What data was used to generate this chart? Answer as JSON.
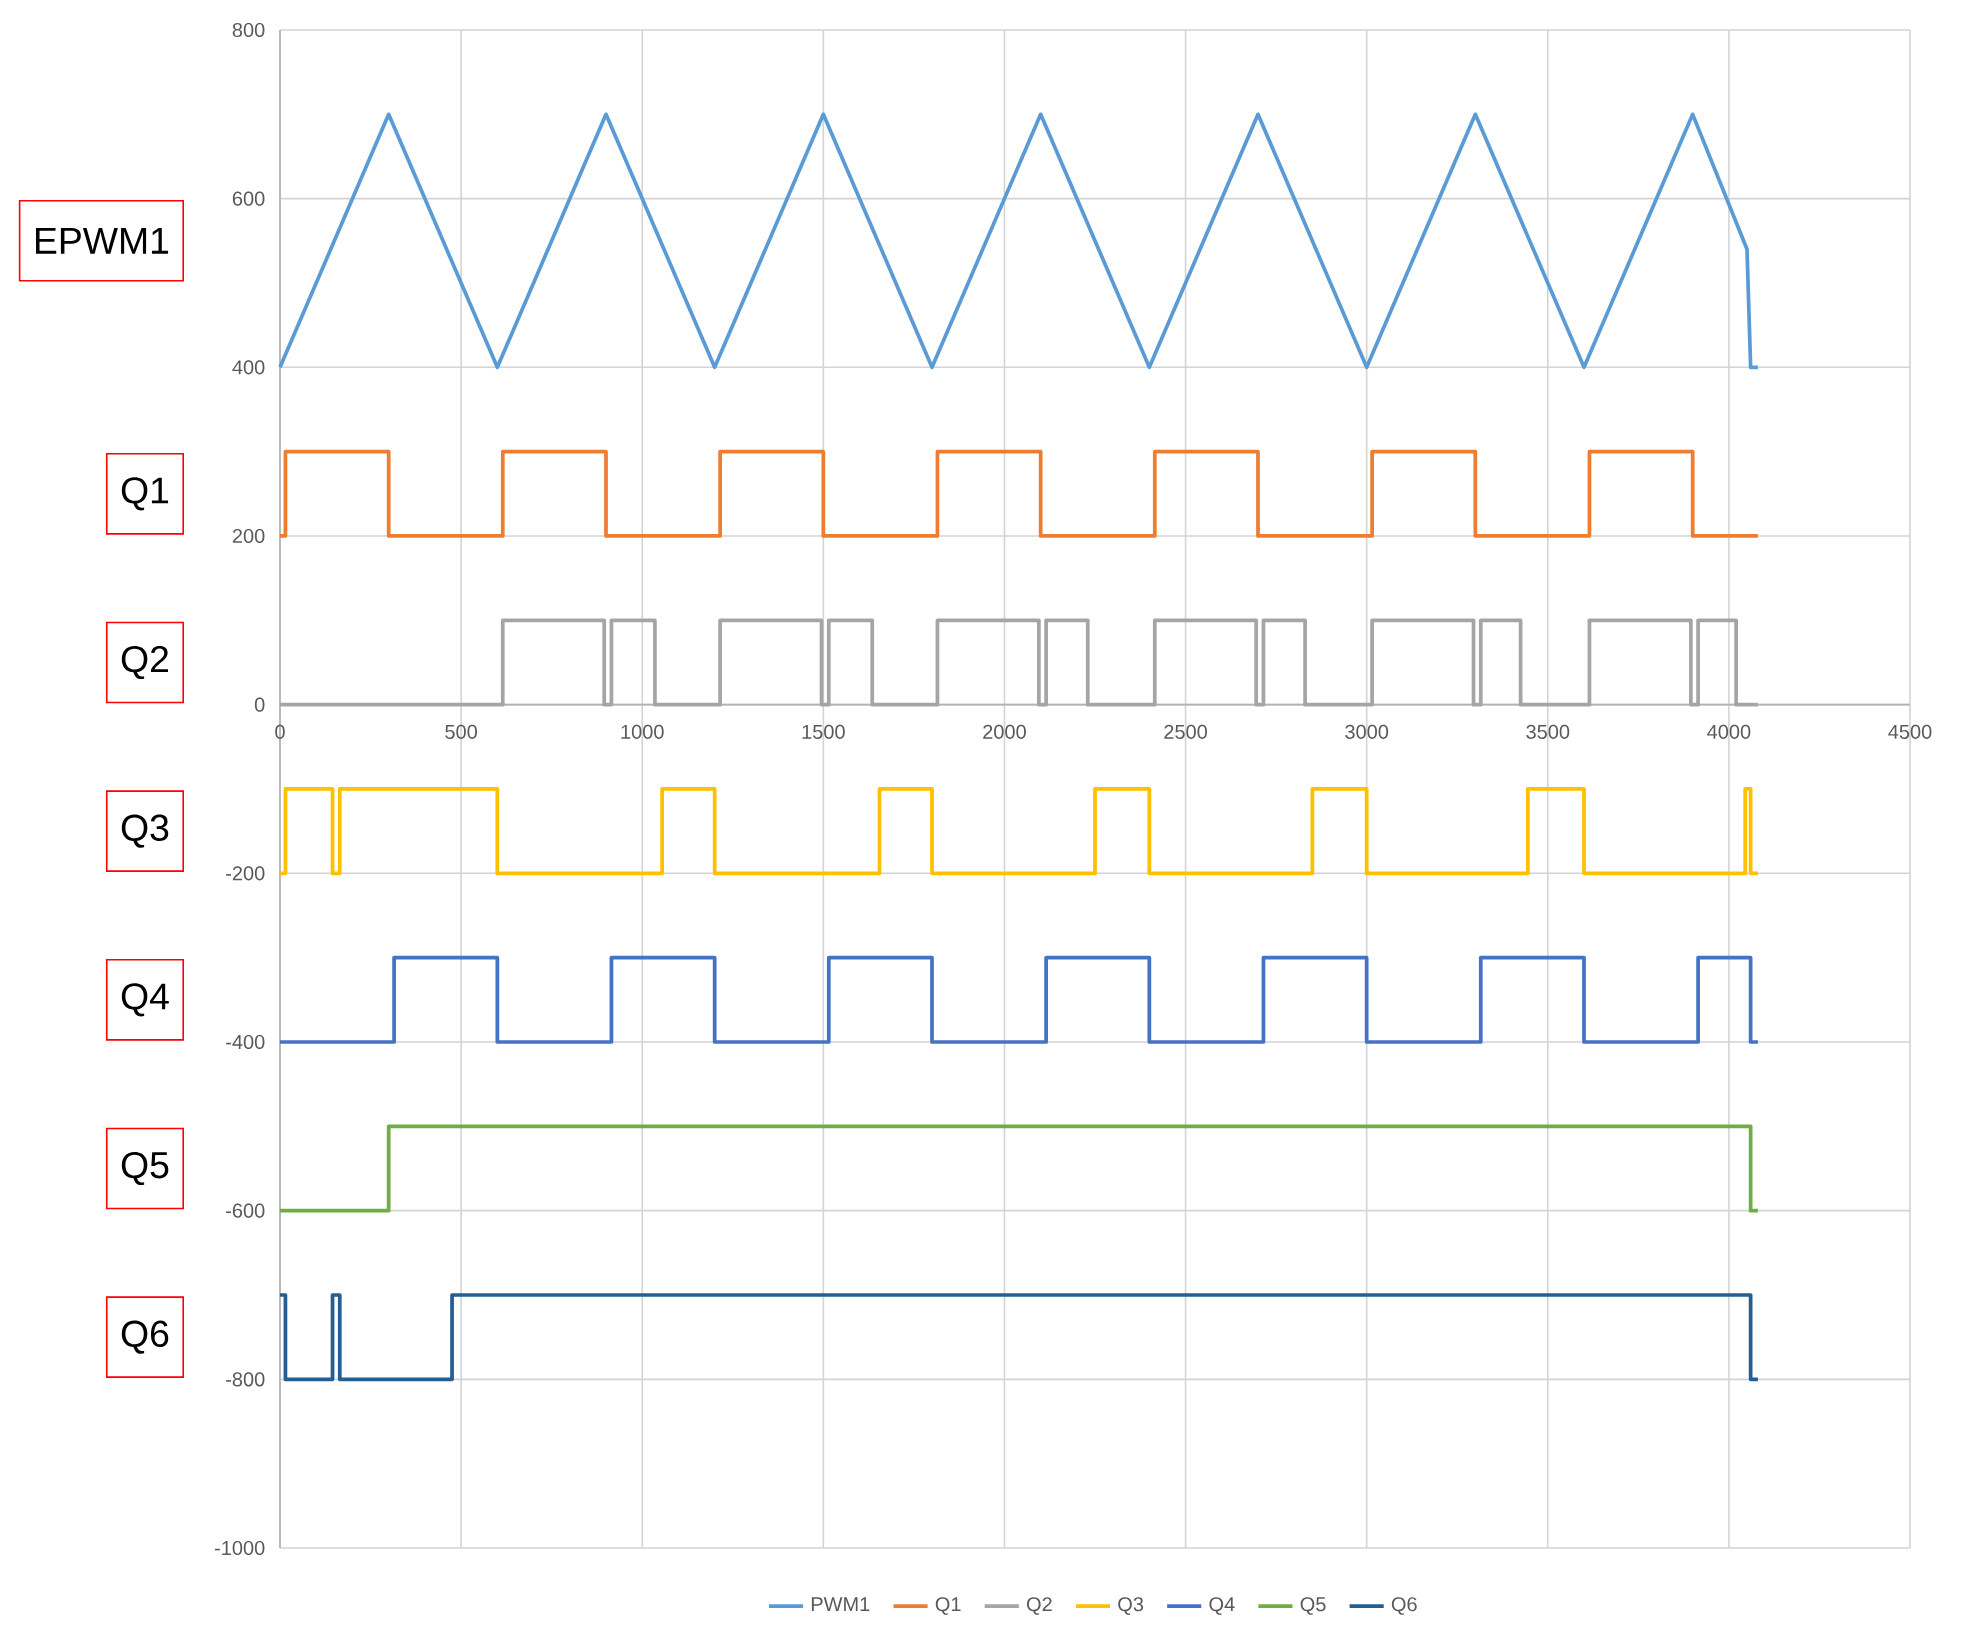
{
  "chart_data": {
    "type": "line",
    "xlim": [
      0,
      4500
    ],
    "xticks": [
      0,
      500,
      1000,
      1500,
      2000,
      2500,
      3000,
      3500,
      4000,
      4500
    ],
    "ylim": [
      -1000,
      800
    ],
    "yticks": [
      -1000,
      -800,
      -600,
      -400,
      -200,
      0,
      200,
      400,
      600,
      800
    ],
    "grid": true,
    "legend": "bottom",
    "annotations": [
      "EPWM1",
      "Q1",
      "Q2",
      "Q3",
      "Q4",
      "Q5",
      "Q6"
    ],
    "series": [
      {
        "name": "PWM1",
        "color": "#5b9bd5",
        "x": [
          0,
          300,
          600,
          900,
          1200,
          1500,
          1800,
          2100,
          2400,
          2700,
          3000,
          3300,
          3600,
          3900,
          4050,
          4060,
          4080
        ],
        "values": [
          400,
          700,
          400,
          700,
          400,
          700,
          400,
          700,
          400,
          700,
          400,
          700,
          400,
          700,
          540,
          400,
          400
        ]
      },
      {
        "name": "Q1",
        "color": "#ed7d31",
        "x": [
          0,
          15,
          15,
          300,
          300,
          615,
          615,
          900,
          900,
          1215,
          1215,
          1500,
          1500,
          1815,
          1815,
          2100,
          2100,
          2415,
          2415,
          2700,
          2700,
          3015,
          3015,
          3300,
          3300,
          3615,
          3615,
          3900,
          3900,
          4080
        ],
        "values": [
          200,
          200,
          300,
          300,
          200,
          200,
          300,
          300,
          200,
          200,
          300,
          300,
          200,
          200,
          300,
          300,
          200,
          200,
          300,
          300,
          200,
          200,
          300,
          300,
          200,
          200,
          300,
          300,
          200,
          200
        ]
      },
      {
        "name": "Q2",
        "color": "#a5a5a5",
        "x": [
          0,
          615,
          615,
          895,
          895,
          915,
          915,
          1035,
          1035,
          1215,
          1215,
          1495,
          1495,
          1515,
          1515,
          1635,
          1635,
          1815,
          1815,
          2095,
          2095,
          2115,
          2115,
          2230,
          2230,
          2415,
          2415,
          2695,
          2695,
          2715,
          2715,
          2830,
          2830,
          3015,
          3015,
          3295,
          3295,
          3315,
          3315,
          3425,
          3425,
          3615,
          3615,
          3895,
          3895,
          3915,
          3915,
          4020,
          4020,
          4080
        ],
        "values": [
          0,
          0,
          100,
          100,
          0,
          0,
          100,
          100,
          0,
          0,
          100,
          100,
          0,
          0,
          100,
          100,
          0,
          0,
          100,
          100,
          0,
          0,
          100,
          100,
          0,
          0,
          100,
          100,
          0,
          0,
          100,
          100,
          0,
          0,
          100,
          100,
          0,
          0,
          100,
          100,
          0,
          0,
          100,
          100,
          0,
          0,
          100,
          100,
          0,
          0
        ]
      },
      {
        "name": "Q3",
        "color": "#ffc000",
        "x": [
          0,
          15,
          15,
          145,
          145,
          165,
          165,
          600,
          600,
          1055,
          1055,
          1200,
          1200,
          1655,
          1655,
          1800,
          1800,
          2250,
          2250,
          2400,
          2400,
          2850,
          2850,
          3000,
          3000,
          3445,
          3445,
          3600,
          3600,
          4045,
          4045,
          4060,
          4060,
          4080
        ],
        "values": [
          -200,
          -200,
          -100,
          -100,
          -200,
          -200,
          -100,
          -100,
          -200,
          -200,
          -100,
          -100,
          -200,
          -200,
          -100,
          -100,
          -200,
          -200,
          -100,
          -100,
          -200,
          -200,
          -100,
          -100,
          -200,
          -200,
          -100,
          -100,
          -200,
          -200,
          -100,
          -100,
          -200,
          -200
        ]
      },
      {
        "name": "Q4",
        "color": "#4472c4",
        "x": [
          0,
          315,
          315,
          600,
          600,
          915,
          915,
          1200,
          1200,
          1515,
          1515,
          1800,
          1800,
          2115,
          2115,
          2400,
          2400,
          2715,
          2715,
          3000,
          3000,
          3315,
          3315,
          3600,
          3600,
          3915,
          3915,
          4060,
          4060,
          4080
        ],
        "values": [
          -400,
          -400,
          -300,
          -300,
          -400,
          -400,
          -300,
          -300,
          -400,
          -400,
          -300,
          -300,
          -400,
          -400,
          -300,
          -300,
          -400,
          -400,
          -300,
          -300,
          -400,
          -400,
          -300,
          -300,
          -400,
          -400,
          -300,
          -300,
          -400,
          -400
        ]
      },
      {
        "name": "Q5",
        "color": "#70ad47",
        "x": [
          0,
          300,
          300,
          4060,
          4060,
          4080
        ],
        "values": [
          -600,
          -600,
          -500,
          -500,
          -600,
          -600
        ]
      },
      {
        "name": "Q6",
        "color": "#255e91",
        "x": [
          0,
          15,
          15,
          145,
          145,
          165,
          165,
          475,
          475,
          4060,
          4060,
          4080
        ],
        "values": [
          -700,
          -700,
          -800,
          -800,
          -700,
          -700,
          -800,
          -800,
          -700,
          -700,
          -800,
          -800
        ]
      }
    ]
  }
}
